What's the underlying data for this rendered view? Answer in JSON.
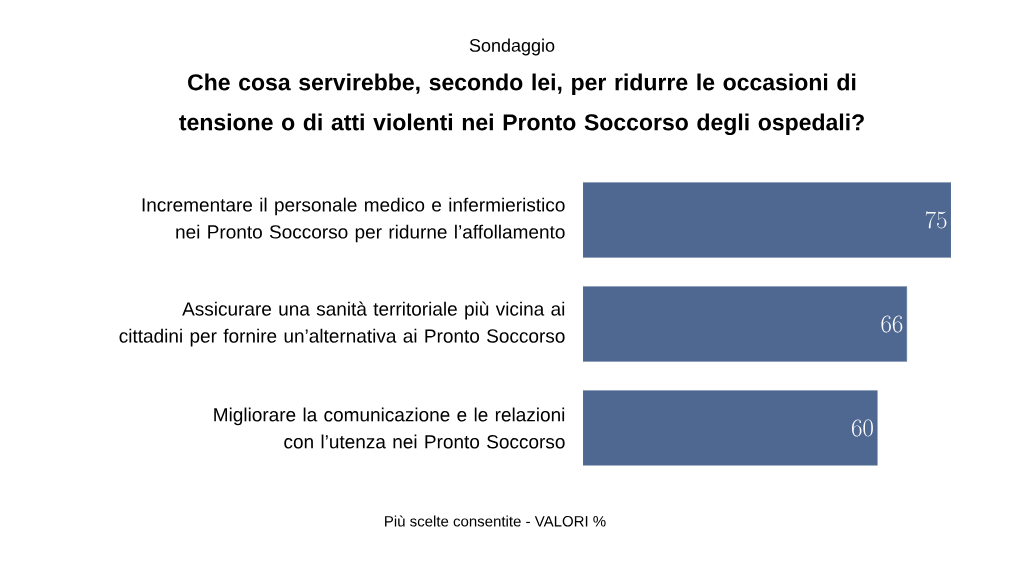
{
  "chart_data": {
    "type": "bar",
    "orientation": "horizontal",
    "subtitle": "Sondaggio",
    "title": "Che cosa servirebbe, secondo lei, per ridurre le occasioni di tensione o di atti violenti nei Pronto Soccorso degli ospedali?",
    "categories": [
      "Incrementare il personale medico e infermieristico nei Pronto Soccorso per ridurne l’affollamento",
      "Assicurare una sanità territoriale più vicina ai cittadini per fornire un’alternativa ai Pronto Soccorso",
      "Migliorare la comunicazione e le relazioni con l’utenza nei Pronto Soccorso"
    ],
    "values": [
      75,
      66,
      60
    ],
    "color": "#4f6891",
    "data_labels": true,
    "annotations": [
      "Più scelte consentite  - VALORI %"
    ]
  }
}
